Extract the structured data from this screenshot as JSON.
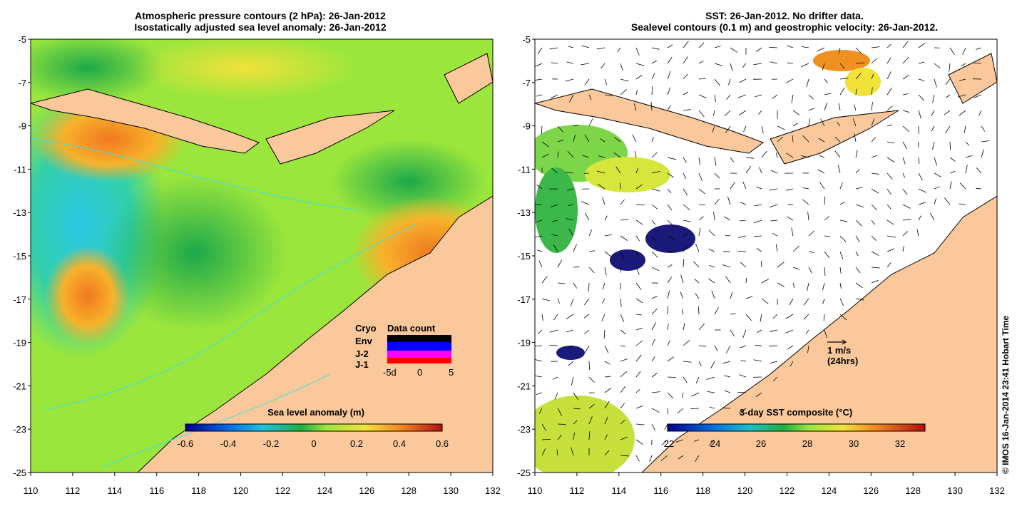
{
  "left_panel": {
    "title_line1": "Atmospheric pressure contours (2 hPa): 26-Jan-2012",
    "title_line2": "Isostatically adjusted sea level anomaly: 26-Jan-2012",
    "colorbar": {
      "label": "Sea level anomaly (m)",
      "ticks": [
        "-0.6",
        "-0.4",
        "-0.2",
        "0",
        "0.2",
        "0.4",
        "0.6"
      ]
    },
    "data_count": {
      "title": "Data count",
      "legend": [
        {
          "label": "Cryo",
          "color": "#000000"
        },
        {
          "label": "Env",
          "color": "#0000ff"
        },
        {
          "label": "J-2",
          "color": "#ff00ff"
        },
        {
          "label": "J-1",
          "color": "#ff0000"
        }
      ],
      "axis_ticks": [
        "-5d",
        "0",
        "5"
      ]
    }
  },
  "right_panel": {
    "title_line1": "SST: 26-Jan-2012. No drifter data.",
    "title_line2": "Sealevel contours (0.1 m) and geostrophic velocity: 26-Jan-2012.",
    "colorbar": {
      "label": "3-day SST composite (°C)",
      "ticks": [
        "22",
        "24",
        "26",
        "28",
        "30",
        "32"
      ]
    },
    "velocity_legend_line1": "1 m/s",
    "velocity_legend_line2": "(24hrs)"
  },
  "axes": {
    "x_ticks": [
      "110",
      "112",
      "114",
      "116",
      "118",
      "120",
      "122",
      "124",
      "126",
      "128",
      "130",
      "132"
    ],
    "y_ticks": [
      "-5",
      "-7",
      "-9",
      "-11",
      "-13",
      "-15",
      "-17",
      "-19",
      "-21",
      "-23",
      "-25"
    ],
    "lon_range": [
      110,
      132
    ],
    "lat_range": [
      -25,
      -5
    ]
  },
  "credit": "© IMOS 16-Jan-2014 23:41 Hobart Time",
  "colors": {
    "land": "#fac89a",
    "sea_default_left": "#9be63c",
    "contour_cyan": "#40e0e0",
    "velocity_legend_arrow": "#000000"
  }
}
